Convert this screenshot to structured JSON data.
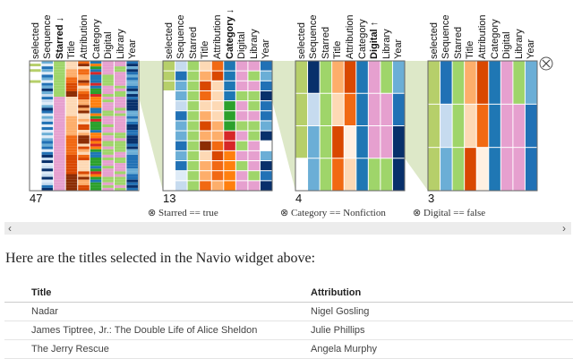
{
  "columns": [
    "selected",
    "Sequence",
    "Starred",
    "Title",
    "Attribution",
    "Category",
    "Digital",
    "Library",
    "Year"
  ],
  "colors": {
    "G": "#b6cf6a",
    "g": "#9fd56a",
    "p": "#e6a0cf",
    "w": "#ffffff",
    "b1": "#deebf7",
    "b2": "#c6dbef",
    "b3": "#6baed6",
    "b4": "#2171b5",
    "b5": "#08306b",
    "o0": "#fff0e2",
    "o1": "#fdd9b5",
    "o2": "#fdae6b",
    "o3": "#f16913",
    "o4": "#d94801",
    "o5": "#8c2d04",
    "C": "#1f77b4",
    "cg": "#2ca02c",
    "co": "#ff7f0e",
    "cr": "#d62728",
    "band": "#dde8c8"
  },
  "panels": [
    {
      "count": "47",
      "sort": "Starred ↓",
      "sort_col": 2,
      "filter": ""
    },
    {
      "count": "13",
      "sort": "Category ↓",
      "sort_col": 5,
      "filter": "⊗ Starred == true",
      "rows": [
        "G b2 g o1 o3 C p p b4",
        "G b4 g o2 o4 C p g b3",
        "G b3 g o4 o1 C p p b4",
        "w b3 g o3 o1 C g g b5",
        "w b2 g o1 o1 cg p g b4",
        "w b4 g o2 o1 cg p p b4",
        "w b3 g o4 o2 cg g g b3",
        "w b3 g o2 o2 cr p g b5",
        "w b4 g o5 o3 cr g p w",
        "w b3 g o1 o4 co p p b3",
        "w b4 g o2 o3 co g p b5",
        "w b1 g o2 o3 co p g b4",
        "w b2 g o3 o2 co p p b5"
      ]
    },
    {
      "count": "4",
      "sort": "Digital ↑",
      "sort_col": 6,
      "filter": "⊗ Category == Nonfiction",
      "rows": [
        "G b5 g o2 o4 C p g b3",
        "G b2 g o1 o3 C p p b4",
        "G b3 g o4 o0 C p p b5",
        "w b3 g o3 o1 C g g b5"
      ]
    },
    {
      "count": "3",
      "sort": "",
      "sort_col": -1,
      "filter": "⊗ Digital == false",
      "rows": [
        "G b4 g o2 o4 C p g b3",
        "G b2 g o1 o3 C p p b4",
        "G b3 g o4 o0 C p p b4"
      ]
    }
  ],
  "close_icon": "⊗",
  "scroll": {
    "left": "‹",
    "right": "›"
  },
  "intro": "Here are the titles selected in the Navio widget above:",
  "table": {
    "headers": [
      "Title",
      "Attribution"
    ],
    "rows": [
      [
        "Nadar",
        "Nigel Gosling"
      ],
      [
        "James Tiptree, Jr.: The Double Life of Alice Sheldon",
        "Julie Phillips"
      ],
      [
        "The Jerry Rescue",
        "Angela Murphy"
      ]
    ]
  }
}
